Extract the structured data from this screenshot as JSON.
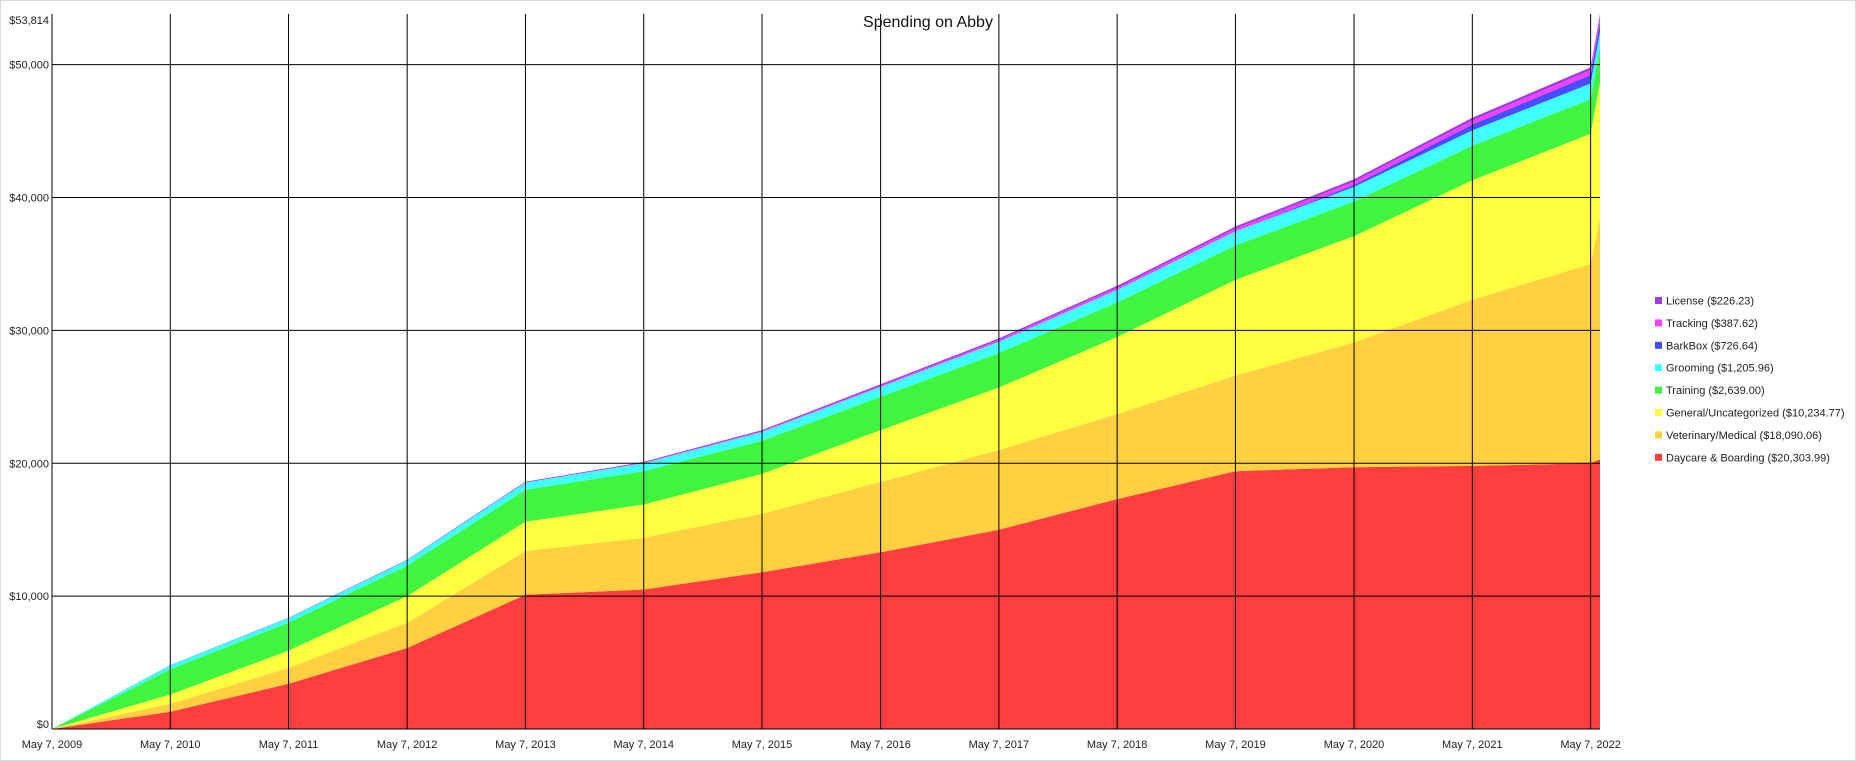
{
  "chart_data": {
    "type": "area",
    "stacked": true,
    "title": "Spending on Abby",
    "xlabel": "",
    "ylabel": "",
    "x_range": [
      "2009-05-07",
      "2022-06-05"
    ],
    "ylim": [
      0,
      53814
    ],
    "grid": true,
    "legend_placement": "right",
    "x_ticks": [
      {
        "date": "2009-05-07",
        "label": "May 7, 2009"
      },
      {
        "date": "2010-05-07",
        "label": "May 7, 2010"
      },
      {
        "date": "2011-05-07",
        "label": "May 7, 2011"
      },
      {
        "date": "2012-05-07",
        "label": "May 7, 2012"
      },
      {
        "date": "2013-05-07",
        "label": "May 7, 2013"
      },
      {
        "date": "2014-05-07",
        "label": "May 7, 2014"
      },
      {
        "date": "2015-05-07",
        "label": "May 7, 2015"
      },
      {
        "date": "2016-05-07",
        "label": "May 7, 2016"
      },
      {
        "date": "2017-05-07",
        "label": "May 7, 2017"
      },
      {
        "date": "2018-05-07",
        "label": "May 7, 2018"
      },
      {
        "date": "2019-05-07",
        "label": "May 7, 2019"
      },
      {
        "date": "2020-05-07",
        "label": "May 7, 2020"
      },
      {
        "date": "2021-05-07",
        "label": "May 7, 2021"
      },
      {
        "date": "2022-05-07",
        "label": "May 7, 2022"
      }
    ],
    "y_ticks": [
      {
        "value": 0,
        "label": "$0"
      },
      {
        "value": 10000,
        "label": "$10,000"
      },
      {
        "value": 20000,
        "label": "$20,000"
      },
      {
        "value": 30000,
        "label": "$30,000"
      },
      {
        "value": 40000,
        "label": "$40,000"
      },
      {
        "value": 50000,
        "label": "$50,000"
      },
      {
        "value": 53814,
        "label": "$53,814"
      }
    ],
    "x": [
      "2009-05-07",
      "2010-05-07",
      "2011-05-07",
      "2012-05-07",
      "2013-05-07",
      "2014-05-07",
      "2015-05-07",
      "2016-05-07",
      "2017-05-07",
      "2018-05-07",
      "2019-05-07",
      "2020-05-07",
      "2021-05-07",
      "2022-05-07",
      "2022-06-05"
    ],
    "series": [
      {
        "name": "Daycare & Boarding",
        "legend_label": "Daycare & Boarding ($20,303.99)",
        "color": "#ff3f3f",
        "values": [
          0,
          1300,
          3400,
          6100,
          10100,
          10500,
          11800,
          13300,
          15000,
          17300,
          19400,
          19700,
          19800,
          20000,
          20304
        ]
      },
      {
        "name": "Veterinary/Medical",
        "legend_label": "Veterinary/Medical ($18,090.06)",
        "color": "#ffd03f",
        "values": [
          0,
          600,
          1200,
          1900,
          3300,
          3900,
          4400,
          5300,
          6000,
          6400,
          7200,
          9400,
          12500,
          15000,
          18090
        ]
      },
      {
        "name": "General/Uncategorized",
        "legend_label": "General/Uncategorized ($10,234.77)",
        "color": "#ffff3f",
        "values": [
          0,
          700,
          1300,
          2000,
          2200,
          2500,
          3000,
          3900,
          4700,
          5800,
          7200,
          8000,
          9000,
          9800,
          10235
        ]
      },
      {
        "name": "Training",
        "legend_label": "Training ($2,639.00)",
        "color": "#3ff53f",
        "values": [
          0,
          1900,
          2100,
          2300,
          2400,
          2500,
          2500,
          2500,
          2600,
          2600,
          2600,
          2600,
          2600,
          2600,
          2639
        ]
      },
      {
        "name": "Grooming",
        "legend_label": "Grooming ($1,205.96)",
        "color": "#3fffff",
        "values": [
          0,
          300,
          350,
          400,
          550,
          600,
          650,
          750,
          850,
          950,
          1050,
          1100,
          1150,
          1180,
          1206
        ]
      },
      {
        "name": "BarkBox",
        "legend_label": "BarkBox ($726.64)",
        "color": "#4b4bff",
        "values": [
          0,
          0,
          0,
          0,
          0,
          0,
          0,
          0,
          0,
          0,
          0,
          150,
          450,
          650,
          727
        ]
      },
      {
        "name": "Tracking",
        "legend_label": "Tracking ($387.62)",
        "color": "#ff3fff",
        "values": [
          0,
          0,
          0,
          0,
          0,
          30,
          60,
          90,
          130,
          170,
          210,
          250,
          300,
          350,
          388
        ]
      },
      {
        "name": "License",
        "legend_label": "License ($226.23)",
        "color": "#9b3fe0",
        "values": [
          0,
          15,
          30,
          45,
          60,
          75,
          90,
          105,
          120,
          140,
          160,
          180,
          200,
          215,
          226
        ]
      }
    ]
  }
}
